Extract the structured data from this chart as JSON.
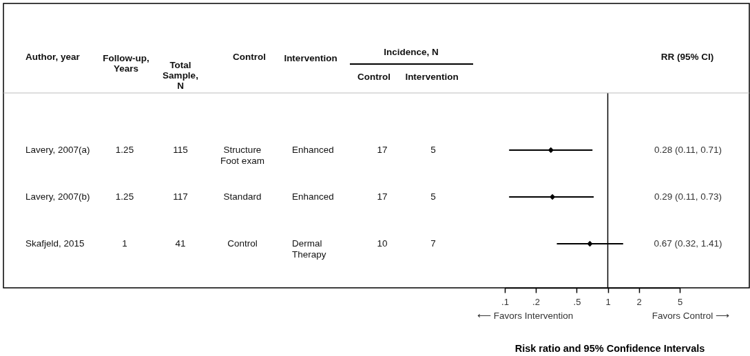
{
  "chart_data": {
    "type": "scatter",
    "orientation": "horizontal",
    "xlabel": "Risk ratio and 95% Confidence Intervals",
    "categories": [
      null,
      null,
      null
    ],
    "values": [
      0.28,
      0.29,
      0.67
    ],
    "errors": [
      [
        0.11,
        0.71
      ],
      [
        0.11,
        0.73
      ],
      [
        0.32,
        1.41
      ]
    ],
    "value_labels": [
      "0.28 (0.11, 0.71)",
      "0.29 (0.11, 0.73)",
      "0.67 (0.32, 1.41)"
    ],
    "color": "#000000",
    "marker": "diamond",
    "log": "x",
    "grid": false,
    "tick_labels": "x",
    "xlim": [
      0.1,
      5
    ],
    "xticks": [
      {
        "value": 0.1,
        "label": ".1"
      },
      {
        "value": 0.2,
        "label": ".2"
      },
      {
        "value": 0.5,
        "label": ".5"
      },
      1,
      2,
      5
    ],
    "ref_lines": [
      {
        "axis": "x",
        "value": 1,
        "color": "#000000"
      }
    ],
    "cell_labels": [
      [
        "Lavery, 2007(a)",
        "1.25",
        "115",
        "Structure\nFoot exam",
        "Enhanced",
        "17",
        "5"
      ],
      [
        "Lavery, 2007(b)",
        "1.25",
        "117",
        "Standard",
        "Enhanced",
        "17",
        "5"
      ],
      [
        "Skafjeld, 2015",
        "1",
        "41",
        "Control",
        "Dermal\nTherapy",
        "10",
        "7"
      ]
    ],
    "annotations": [
      "Author, year",
      "Follow-up,\nYears",
      "Total\nSample,\nN",
      "Control",
      "Intervention",
      "Control",
      "Intervention",
      "Incidence, N",
      "RR (95% CI)",
      "⟵ Favors Intervention",
      "Favors Control ⟶"
    ]
  }
}
